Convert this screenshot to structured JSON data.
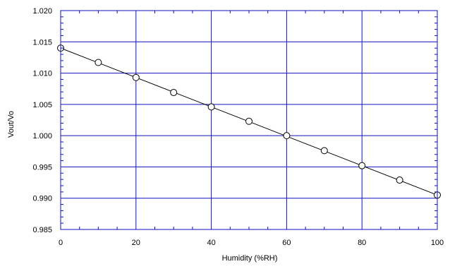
{
  "chart_data": {
    "type": "scatter",
    "xlabel": "Humidity (%RH)",
    "ylabel": "Vout/Vo",
    "xlim": [
      0,
      100
    ],
    "ylim": [
      0.985,
      1.02
    ],
    "x_ticks": [
      0,
      20,
      40,
      60,
      80,
      100
    ],
    "y_ticks": [
      0.985,
      0.99,
      0.995,
      1.0,
      1.005,
      1.01,
      1.015,
      1.02
    ],
    "grid": true,
    "series": [
      {
        "x": [
          0,
          10,
          20,
          30,
          40,
          50,
          60,
          70,
          80,
          90,
          100
        ],
        "y": [
          1.014,
          1.0117,
          1.0093,
          1.0069,
          1.0046,
          1.0023,
          1.0,
          0.9976,
          0.9952,
          0.9929,
          0.9905
        ],
        "marker": "open-circle"
      }
    ],
    "fit_line": {
      "x": [
        0,
        100
      ],
      "y": [
        1.014,
        0.9905
      ]
    },
    "colors": {
      "grid": "#1010c0",
      "frame": "#1010c0",
      "data": "#000000"
    }
  }
}
